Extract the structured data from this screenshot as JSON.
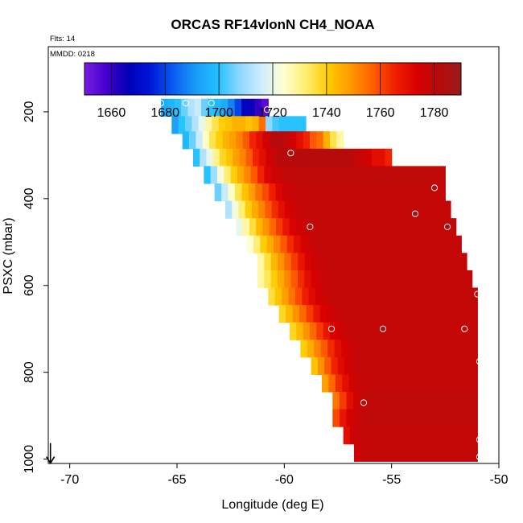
{
  "chart_data": {
    "type": "heatmap",
    "title": "ORCAS RF14vlonN CH4_NOAA",
    "annotations": {
      "flights": "Flts: 14",
      "date": "MMDD: 0218"
    },
    "xlabel": "Longitude (deg E)",
    "ylabel": "PSXC (mbar)",
    "xlim": [
      -71,
      -50
    ],
    "ylim": [
      1010,
      50
    ],
    "x_ticks": [
      -70,
      -65,
      -60,
      -55,
      -50
    ],
    "y_ticks": [
      200,
      400,
      600,
      800,
      1000
    ],
    "grid": false,
    "colorbar": {
      "range": [
        1650,
        1790
      ],
      "ticks": [
        1660,
        1680,
        1700,
        1720,
        1740,
        1760,
        1780
      ],
      "colors": [
        "#7a1be0",
        "#4400cc",
        "#0000b8",
        "#0018d8",
        "#0a5cf0",
        "#1a9af8",
        "#20c0ff",
        "#8ed6ff",
        "#d0eeff",
        "#ffffd0",
        "#ffee70",
        "#ffcc00",
        "#ff9a00",
        "#ff6000",
        "#f02000",
        "#d80000",
        "#b80a0a",
        "#9a1a1a"
      ]
    },
    "rows": [
      {
        "p": 190,
        "x0": -65.75,
        "x1": -60.75,
        "vals": [
          1695,
          1697,
          1700,
          1705,
          1712,
          1715,
          1705,
          1700,
          1698,
          1695,
          1688,
          1680,
          1668,
          1665,
          1660,
          1655
        ]
      },
      {
        "p": 230,
        "x0": -65.25,
        "x1": -59.0,
        "vals": [
          1693,
          1700,
          1705,
          1712,
          1720,
          1728,
          1735,
          1740,
          1742,
          1745,
          1745,
          1742,
          1745,
          1755,
          1708,
          1702,
          1700,
          1700,
          1700,
          1700
        ]
      },
      {
        "p": 265,
        "x0": -64.75,
        "x1": -57.25,
        "vals": [
          1698,
          1705,
          1715,
          1725,
          1735,
          1740,
          1745,
          1748,
          1752,
          1758,
          1765,
          1770,
          1775,
          1782,
          1782,
          1780,
          1775,
          1770,
          1765,
          1758,
          1755,
          1745,
          1735,
          1728
        ]
      },
      {
        "p": 305,
        "x0": -64.25,
        "x1": -55.0,
        "vals": [
          1700,
          1712,
          1720,
          1730,
          1738,
          1742,
          1748,
          1752,
          1758,
          1765,
          1770,
          1775,
          1780,
          1782,
          1782,
          1782,
          1782,
          1782,
          1782,
          1782,
          1782,
          1782,
          1782,
          1782,
          1780,
          1778,
          1775,
          1770,
          1770,
          1765
        ]
      },
      {
        "p": 345,
        "x0": -63.75,
        "x1": -52.5,
        "vals": [
          1700,
          1710,
          1722,
          1732,
          1740,
          1746,
          1752,
          1758,
          1765,
          1772,
          1776,
          1778,
          1780,
          1780,
          1780,
          1780,
          1780,
          1780,
          1780,
          1780,
          1780,
          1780,
          1780,
          1780,
          1780,
          1780,
          1780,
          1780,
          1780,
          1780,
          1780,
          1780,
          1780,
          1780,
          1780,
          1780
        ]
      },
      {
        "p": 385,
        "x0": -63.25,
        "x1": -52.5,
        "vals": [
          1705,
          1715,
          1725,
          1735,
          1742,
          1748,
          1755,
          1760,
          1766,
          1772,
          1776,
          1778,
          1779,
          1779,
          1779,
          1779,
          1779,
          1779,
          1779,
          1779,
          1779,
          1779,
          1779,
          1779,
          1779,
          1779,
          1779,
          1779,
          1779,
          1779,
          1779,
          1779,
          1779,
          1779
        ]
      },
      {
        "p": 425,
        "x0": -62.75,
        "x1": -52.25,
        "vals": [
          1712,
          1722,
          1732,
          1740,
          1746,
          1752,
          1758,
          1764,
          1770,
          1774,
          1777,
          1779,
          1779,
          1779,
          1779,
          1779,
          1779,
          1779,
          1779,
          1779,
          1779,
          1779,
          1779,
          1779,
          1779,
          1779,
          1779,
          1779,
          1779,
          1779,
          1779,
          1779,
          1779,
          1779
        ]
      },
      {
        "p": 465,
        "x0": -62.25,
        "x1": -52.0,
        "vals": [
          1720,
          1728,
          1736,
          1744,
          1750,
          1756,
          1762,
          1768,
          1773,
          1776,
          1778,
          1779,
          1779,
          1779,
          1779,
          1779,
          1779,
          1779,
          1779,
          1779,
          1779,
          1779,
          1779,
          1779,
          1779,
          1779,
          1779,
          1779,
          1779,
          1779,
          1779,
          1779,
          1779
        ]
      },
      {
        "p": 505,
        "x0": -61.75,
        "x1": -51.75,
        "vals": [
          1724,
          1732,
          1740,
          1746,
          1752,
          1758,
          1764,
          1770,
          1774,
          1777,
          1779,
          1779,
          1779,
          1779,
          1779,
          1779,
          1779,
          1779,
          1779,
          1779,
          1779,
          1779,
          1779,
          1779,
          1779,
          1779,
          1779,
          1779,
          1779,
          1779,
          1779,
          1779
        ]
      },
      {
        "p": 545,
        "x0": -61.25,
        "x1": -51.5,
        "vals": [
          1728,
          1736,
          1744,
          1750,
          1756,
          1762,
          1768,
          1773,
          1776,
          1778,
          1779,
          1779,
          1779,
          1779,
          1779,
          1779,
          1779,
          1779,
          1779,
          1779,
          1779,
          1779,
          1779,
          1779,
          1779,
          1779,
          1779,
          1779,
          1779,
          1779,
          1779
        ]
      },
      {
        "p": 585,
        "x0": -61.25,
        "x1": -51.25,
        "vals": [
          1728,
          1734,
          1740,
          1746,
          1752,
          1758,
          1764,
          1770,
          1774,
          1777,
          1779,
          1779,
          1779,
          1779,
          1779,
          1779,
          1779,
          1779,
          1779,
          1779,
          1779,
          1779,
          1779,
          1779,
          1779,
          1779,
          1779,
          1779,
          1779,
          1779,
          1779,
          1779
        ]
      },
      {
        "p": 625,
        "x0": -60.75,
        "x1": -51.0,
        "vals": [
          1736,
          1742,
          1748,
          1754,
          1760,
          1766,
          1771,
          1775,
          1777,
          1779,
          1779,
          1779,
          1779,
          1779,
          1779,
          1779,
          1779,
          1779,
          1779,
          1779,
          1779,
          1779,
          1779,
          1779,
          1779,
          1779,
          1779,
          1779,
          1779,
          1779,
          1779
        ]
      },
      {
        "p": 665,
        "x0": -60.25,
        "x1": -51.0,
        "vals": [
          1738,
          1744,
          1750,
          1756,
          1762,
          1768,
          1773,
          1776,
          1778,
          1779,
          1779,
          1779,
          1779,
          1779,
          1779,
          1779,
          1779,
          1779,
          1779,
          1779,
          1779,
          1779,
          1779,
          1779,
          1779,
          1779,
          1779,
          1779,
          1779
        ]
      },
      {
        "p": 705,
        "x0": -59.75,
        "x1": -51.0,
        "vals": [
          1738,
          1744,
          1750,
          1756,
          1762,
          1768,
          1773,
          1776,
          1778,
          1779,
          1779,
          1779,
          1779,
          1779,
          1779,
          1779,
          1779,
          1779,
          1779,
          1779,
          1779,
          1779,
          1779,
          1779,
          1779,
          1779,
          1779,
          1779
        ]
      },
      {
        "p": 745,
        "x0": -59.25,
        "x1": -51.0,
        "vals": [
          1740,
          1746,
          1752,
          1758,
          1764,
          1770,
          1774,
          1777,
          1779,
          1779,
          1779,
          1779,
          1779,
          1779,
          1779,
          1779,
          1779,
          1779,
          1779,
          1779,
          1779,
          1779,
          1779,
          1779,
          1779,
          1779
        ]
      },
      {
        "p": 785,
        "x0": -58.75,
        "x1": -51.0,
        "vals": [
          1742,
          1750,
          1758,
          1765,
          1771,
          1775,
          1778,
          1779,
          1779,
          1779,
          1779,
          1779,
          1779,
          1779,
          1779,
          1779,
          1779,
          1779,
          1779,
          1779,
          1779,
          1779,
          1779,
          1779,
          1779
        ]
      },
      {
        "p": 825,
        "x0": -58.25,
        "x1": -51.0,
        "vals": [
          1748,
          1756,
          1764,
          1770,
          1775,
          1778,
          1779,
          1779,
          1779,
          1779,
          1779,
          1779,
          1779,
          1779,
          1779,
          1779,
          1779,
          1779,
          1779,
          1779,
          1779,
          1779,
          1779
        ]
      },
      {
        "p": 865,
        "x0": -57.75,
        "x1": -51.0,
        "vals": [
          1754,
          1762,
          1770,
          1776,
          1779,
          1780,
          1780,
          1780,
          1780,
          1780,
          1780,
          1780,
          1780,
          1780,
          1780,
          1780,
          1780,
          1780,
          1780,
          1780,
          1780
        ]
      },
      {
        "p": 905,
        "x0": -57.75,
        "x1": -51.0,
        "vals": [
          1760,
          1768,
          1774,
          1778,
          1779,
          1780,
          1780,
          1780,
          1780,
          1780,
          1780,
          1780,
          1780,
          1780,
          1780,
          1780,
          1780,
          1780,
          1780,
          1780,
          1780
        ]
      },
      {
        "p": 945,
        "x0": -57.25,
        "x1": -51.0,
        "vals": [
          1770,
          1776,
          1779,
          1779,
          1779,
          1779,
          1779,
          1779,
          1779,
          1779,
          1779,
          1779,
          1779,
          1779,
          1779,
          1779,
          1779,
          1779,
          1779,
          1779
        ]
      },
      {
        "p": 985,
        "x0": -56.75,
        "x1": -51.0,
        "vals": [
          1775,
          1779,
          1779,
          1779,
          1779,
          1779,
          1779,
          1779,
          1779,
          1779,
          1779,
          1779,
          1779,
          1779,
          1779,
          1779,
          1779,
          1779
        ]
      }
    ],
    "points": [
      {
        "x": -65.75,
        "y": 180
      },
      {
        "x": -64.6,
        "y": 180
      },
      {
        "x": -63.4,
        "y": 180
      },
      {
        "x": -60.8,
        "y": 195
      },
      {
        "x": -59.7,
        "y": 295
      },
      {
        "x": -53.0,
        "y": 375
      },
      {
        "x": -53.9,
        "y": 435
      },
      {
        "x": -58.8,
        "y": 465
      },
      {
        "x": -52.4,
        "y": 465
      },
      {
        "x": -51.0,
        "y": 620
      },
      {
        "x": -57.8,
        "y": 700
      },
      {
        "x": -55.4,
        "y": 700
      },
      {
        "x": -51.6,
        "y": 700
      },
      {
        "x": -50.9,
        "y": 775
      },
      {
        "x": -56.3,
        "y": 870
      },
      {
        "x": -50.9,
        "y": 955
      },
      {
        "x": -57.1,
        "y": 995
      },
      {
        "x": -56.9,
        "y": 995
      },
      {
        "x": -57.4,
        "y": 1000
      },
      {
        "x": -50.9,
        "y": 995
      }
    ],
    "arrow": {
      "x": -70.9,
      "y": 1000
    }
  }
}
